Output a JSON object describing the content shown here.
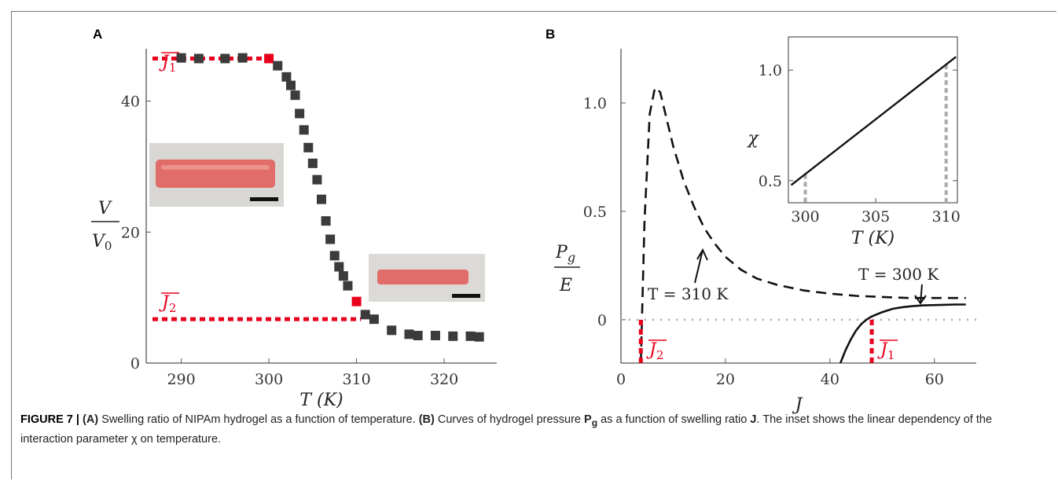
{
  "figure": {
    "panel_a_label": "A",
    "panel_b_label": "B",
    "caption": {
      "lead": "FIGURE 7 | ",
      "part_a_tag": "(A)",
      "part_a_text": " Swelling ratio of NIPAm hydrogel as a function of temperature. ",
      "part_b_tag": "(B)",
      "part_b_text1": " Curves of hydrogel pressure ",
      "pg": "P",
      "pg_sub": "g",
      "part_b_text2": " as a function of swelling ratio ",
      "j": "J",
      "part_b_text3": ". The inset shows the linear dependency of the interaction parameter χ on temperature."
    }
  },
  "chart_data": [
    {
      "id": "panel-a",
      "type": "scatter",
      "xlabel": "T (K)",
      "ylabel_num": "V",
      "ylabel_den": "V0",
      "xlim": [
        286,
        326
      ],
      "ylim": [
        0,
        48
      ],
      "xticks": [
        290,
        300,
        310,
        320
      ],
      "yticks": [
        0,
        20,
        40
      ],
      "x": [
        290,
        292,
        295,
        297,
        300,
        301,
        302,
        302.5,
        303,
        303.5,
        304,
        304.5,
        305,
        305.5,
        306,
        306.5,
        307,
        307.5,
        308,
        308.5,
        309,
        310,
        311,
        312,
        314,
        316,
        317,
        319,
        321,
        323,
        324
      ],
      "y": [
        46.6,
        46.5,
        46.5,
        46.6,
        46.5,
        45.4,
        43.7,
        42.4,
        40.9,
        38.1,
        35.6,
        32.9,
        30.5,
        28.0,
        25.0,
        21.7,
        18.9,
        16.4,
        14.7,
        13.3,
        11.8,
        9.4,
        7.4,
        6.7,
        5.0,
        4.4,
        4.2,
        4.2,
        4.1,
        4.1,
        4.0
      ],
      "annotations": [
        {
          "label": "J̄1",
          "y": 46.5,
          "x_from": 286,
          "x_to": 300
        },
        {
          "label": "J̄2",
          "y": 6.7,
          "x_from": 286,
          "x_to": 310.5
        }
      ]
    },
    {
      "id": "panel-b",
      "type": "line",
      "xlabel": "J",
      "ylabel_num": "Pg",
      "ylabel_den": "E",
      "xlim": [
        0,
        68
      ],
      "ylim": [
        -0.2,
        1.25
      ],
      "xticks": [
        0,
        20,
        40,
        60
      ],
      "yticks": [
        0,
        0.5,
        1.0
      ],
      "series": [
        {
          "annotation": "T = 310 K",
          "style": "dashed",
          "x": [
            3.8,
            4.5,
            5.5,
            6.5,
            7.5,
            8.5,
            10,
            12,
            14,
            16,
            18,
            20,
            23,
            26,
            30,
            35,
            40,
            45,
            50,
            55,
            60,
            66
          ],
          "y": [
            -0.2,
            0.45,
            0.95,
            1.07,
            1.05,
            0.95,
            0.8,
            0.64,
            0.52,
            0.42,
            0.35,
            0.29,
            0.23,
            0.19,
            0.16,
            0.135,
            0.12,
            0.11,
            0.105,
            0.1,
            0.1,
            0.1
          ]
        },
        {
          "annotation": "T = 300 K",
          "style": "solid",
          "x": [
            42,
            43,
            44,
            45,
            46,
            47,
            48,
            49,
            50,
            52,
            54,
            56,
            58,
            61,
            64,
            66
          ],
          "y": [
            -0.2,
            -0.14,
            -0.09,
            -0.05,
            -0.02,
            0.0,
            0.015,
            0.025,
            0.035,
            0.05,
            0.058,
            0.063,
            0.066,
            0.068,
            0.07,
            0.07
          ]
        }
      ],
      "reference_lines": [
        {
          "style": "dotted",
          "y": 0
        },
        {
          "label": "J̄2",
          "x": 3.8
        },
        {
          "label": "J̄1",
          "x": 48
        }
      ]
    },
    {
      "id": "panel-b-inset",
      "type": "line",
      "xlabel": "T (K)",
      "ylabel": "χ",
      "xlim": [
        298.8,
        310.8
      ],
      "ylim": [
        0.4,
        1.15
      ],
      "xticks": [
        300,
        305,
        310
      ],
      "yticks": [
        0.5,
        1.0
      ],
      "series": [
        {
          "style": "solid",
          "x": [
            299,
            310.7
          ],
          "y": [
            0.48,
            1.06
          ]
        }
      ],
      "reference_lines": [
        {
          "style": "dotted",
          "x": 300
        },
        {
          "style": "dotted",
          "x": 310
        }
      ]
    }
  ]
}
